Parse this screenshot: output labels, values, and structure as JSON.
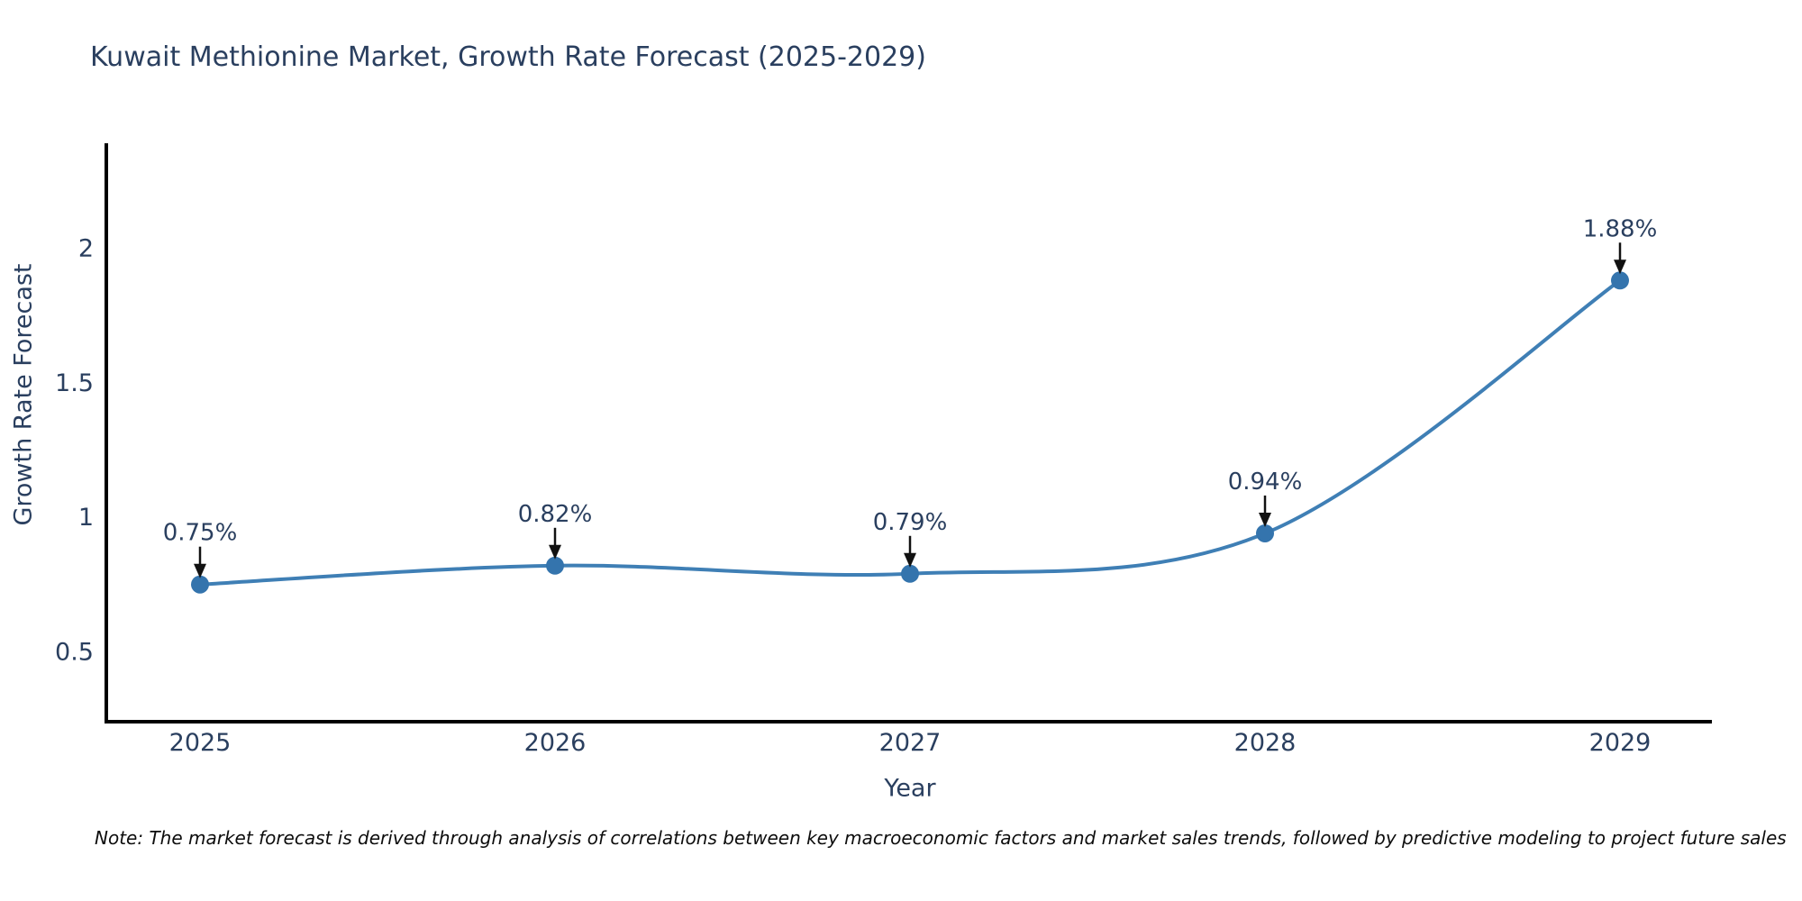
{
  "title": "Kuwait Methionine Market, Growth Rate Forecast (2025-2029)",
  "note": "Note: The market forecast is derived through analysis of correlations between key macroeconomic factors and market sales trends, followed by predictive modeling to project future sales",
  "colors": {
    "line": "#3f7fb5",
    "marker": "#3474ad",
    "text": "#2a3f5f",
    "axis": "#000000",
    "arrow": "#111111"
  },
  "chart_data": {
    "type": "line",
    "title": "Kuwait Methionine Market, Growth Rate Forecast (2025-2029)",
    "xlabel": "Year",
    "ylabel": "Growth Rate Forecast",
    "categories": [
      "2025",
      "2026",
      "2027",
      "2028",
      "2029"
    ],
    "values": [
      0.75,
      0.82,
      0.79,
      0.94,
      1.88
    ],
    "point_labels": [
      "0.75%",
      "0.82%",
      "0.79%",
      "0.94%",
      "1.88%"
    ],
    "yticks": [
      0.5,
      1,
      1.5,
      2
    ],
    "ytick_labels": [
      "0.5",
      "1",
      "1.5",
      "2"
    ],
    "ylim": [
      0.24,
      2.39
    ],
    "grid": false,
    "legend": false,
    "line_shape": "spline",
    "marker": "circle",
    "annotation_arrows": true
  }
}
